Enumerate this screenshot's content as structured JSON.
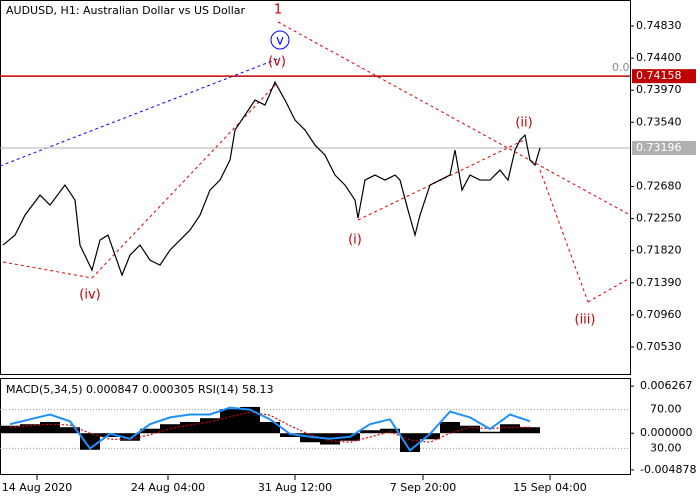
{
  "chart_data": [
    {
      "type": "line",
      "title": "AUDUSD, H1:  Australian Dollar vs US Dollar",
      "color": "#000000",
      "x": [
        3,
        15,
        25,
        40,
        50,
        65,
        75,
        80,
        92,
        100,
        108,
        115,
        122,
        130,
        140,
        150,
        160,
        170,
        180,
        190,
        200,
        210,
        220,
        230,
        235,
        245,
        255,
        265,
        275,
        285,
        295,
        305,
        315,
        325,
        335,
        345,
        355,
        358,
        365,
        375,
        385,
        395,
        400,
        408,
        415,
        420,
        430,
        440,
        450,
        455,
        462,
        470,
        480,
        490,
        500,
        508,
        515,
        520,
        525,
        530,
        535,
        540
      ],
      "values": [
        0.71895,
        0.72029,
        0.72297,
        0.72565,
        0.72431,
        0.72699,
        0.72498,
        0.71895,
        0.7156,
        0.71962,
        0.72029,
        0.71761,
        0.71493,
        0.71761,
        0.71895,
        0.71694,
        0.71627,
        0.71828,
        0.71962,
        0.72096,
        0.72297,
        0.72632,
        0.72766,
        0.73034,
        0.73436,
        0.73637,
        0.73838,
        0.73771,
        0.74079,
        0.73838,
        0.7357,
        0.73436,
        0.73235,
        0.73101,
        0.72833,
        0.72699,
        0.72498,
        0.72257,
        0.72766,
        0.72833,
        0.72766,
        0.72833,
        0.72766,
        0.72364,
        0.72029,
        0.72297,
        0.72699,
        0.72766,
        0.72833,
        0.73168,
        0.72632,
        0.72833,
        0.72766,
        0.72766,
        0.729,
        0.72766,
        0.73168,
        0.73302,
        0.73369,
        0.73034,
        0.72967,
        0.73195
      ],
      "xlim": [
        0,
        630
      ],
      "ylim": [
        0.70155,
        0.75178
      ],
      "xticks": [
        {
          "value": 37,
          "label": "14 Aug 2020"
        },
        {
          "value": 168,
          "label": "24 Aug 04:00"
        },
        {
          "value": 295,
          "label": "31 Aug 12:00"
        },
        {
          "value": 423,
          "label": "7 Sep 20:00"
        },
        {
          "value": 550,
          "label": "15 Sep 04:00"
        }
      ],
      "yticks": [
        {
          "value": 0.7483,
          "label": "0.74830"
        },
        {
          "value": 0.744,
          "label": "0.74400"
        },
        {
          "value": 0.7397,
          "label": "0.73970"
        },
        {
          "value": 0.7354,
          "label": "0.73540"
        },
        {
          "value": 0.7268,
          "label": "0.72680"
        },
        {
          "value": 0.7225,
          "label": "0.72250"
        },
        {
          "value": 0.7182,
          "label": "0.71820"
        },
        {
          "value": 0.7139,
          "label": "0.71390"
        },
        {
          "value": 0.7096,
          "label": "0.70960"
        },
        {
          "value": 0.7053,
          "label": "0.70530"
        }
      ],
      "hlines": [
        {
          "value": 0.74158,
          "color": "#c00000"
        },
        {
          "value": 0.73196,
          "color": "#b0b0b0"
        }
      ],
      "level_label": "0.0",
      "annotations": [
        "1",
        "v",
        "(v)",
        "(iv)",
        "(i)",
        "(ii)",
        "(iii)"
      ]
    },
    {
      "type": "macd",
      "title": "MACD(5,34,5) 0.000847 0.000305 RSI(14) 58.13",
      "x": [
        10,
        30,
        50,
        70,
        90,
        110,
        130,
        150,
        170,
        190,
        210,
        230,
        250,
        270,
        290,
        310,
        330,
        350,
        370,
        390,
        410,
        430,
        450,
        470,
        490,
        510,
        530
      ],
      "series": [
        {
          "color": "#000000",
          "kind": "bar",
          "values": [
            0.001,
            0.0012,
            0.0015,
            0.0008,
            -0.0022,
            -0.0005,
            -0.001,
            0.0006,
            0.0012,
            0.0015,
            0.002,
            0.0032,
            0.0035,
            0.0015,
            -0.0005,
            -0.0012,
            -0.0015,
            -0.001,
            0.0004,
            0.0006,
            -0.0025,
            -0.0008,
            0.0015,
            0.001,
            0.0002,
            0.0012,
            0.0008
          ]
        },
        {
          "color": "#e00000",
          "kind": "line",
          "values": [
            0.0008,
            0.001,
            0.0012,
            0.0011,
            0,
            -0.0008,
            -0.0008,
            -0.0002,
            0.0006,
            0.0011,
            0.0015,
            0.0022,
            0.0028,
            0.0024,
            0.001,
            -0.0002,
            -0.001,
            -0.0012,
            -0.0005,
            0.0002,
            -0.0009,
            -0.0012,
            0,
            0.0008,
            0.0006,
            0.0008,
            0.0008
          ]
        },
        {
          "color": "#1e90ff",
          "kind": "line",
          "axis": "y2",
          "values": [
            55,
            60,
            65,
            58,
            30,
            45,
            40,
            55,
            62,
            65,
            65,
            72,
            70,
            60,
            45,
            42,
            40,
            42,
            55,
            60,
            28,
            45,
            68,
            62,
            50,
            65,
            58
          ]
        }
      ],
      "xlim": [
        0,
        630
      ],
      "ylim": [
        -0.005558,
        0.007218
      ],
      "y2lim": [
        2.6,
        101.6
      ],
      "yticks": [
        0.006267,
        {
          "value": 0,
          "label": "0.000000"
        },
        -0.004878
      ],
      "y2ticks": [
        {
          "value": 70,
          "label": "70.00"
        },
        {
          "value": 30,
          "label": "30.00"
        }
      ]
    }
  ]
}
